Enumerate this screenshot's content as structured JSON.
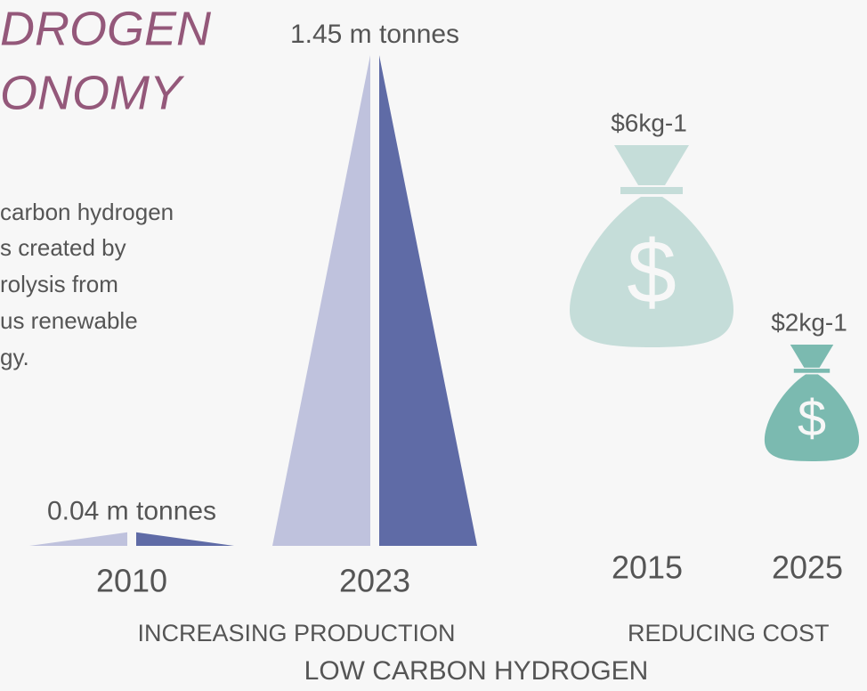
{
  "title_lines": [
    "DROGEN",
    "ONOMY"
  ],
  "body_lines": [
    "carbon hydrogen",
    "s created by",
    "rolysis from",
    "us renewable",
    "gy."
  ],
  "footer": "LOW CARBON HYDROGEN",
  "chart_data": [
    {
      "type": "triangle",
      "subtitle": "INCREASING PRODUCTION",
      "categories": [
        "2010",
        "2023"
      ],
      "values": [
        0.04,
        1.45
      ],
      "value_labels": [
        "0.04 m tonnes",
        "1.45 m tonnes"
      ],
      "colors": [
        "#bfc2dd",
        "#5f6ba6"
      ]
    },
    {
      "type": "bag",
      "subtitle": "REDUCING COST",
      "symbol": "$",
      "categories": [
        "2015",
        "2025"
      ],
      "values": [
        6,
        2
      ],
      "value_labels": [
        "$6kg-1",
        "$2kg-1"
      ],
      "colors": [
        "#c5ddd9",
        "#7bbab0"
      ]
    }
  ]
}
